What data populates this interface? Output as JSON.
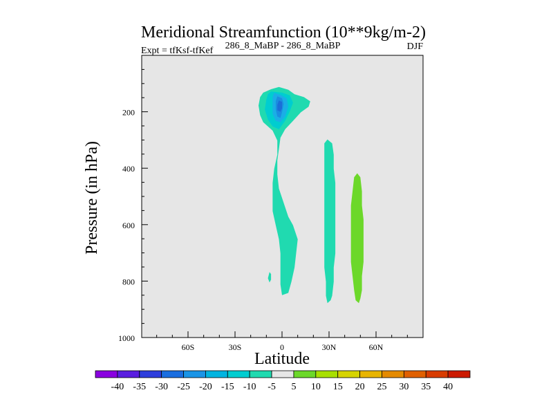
{
  "chart_data": {
    "type": "contour",
    "title": "Meridional Streamfunction (10**9kg/m-2)",
    "subtitle_left": "Expt = tfKsf-tfKef",
    "subtitle_center": "286_8_MaBP - 286_8_MaBP",
    "subtitle_right": "DJF",
    "xlabel": "Latitude",
    "ylabel": "Pressure (in hPa)",
    "xlim": [
      -90,
      90
    ],
    "ylim": [
      1000,
      0
    ],
    "x_ticks": [
      {
        "value": -60,
        "label": "60S"
      },
      {
        "value": -30,
        "label": "30S"
      },
      {
        "value": 0,
        "label": "0"
      },
      {
        "value": 30,
        "label": "30N"
      },
      {
        "value": 60,
        "label": "60N"
      }
    ],
    "y_ticks": [
      {
        "value": 200,
        "label": "200"
      },
      {
        "value": 400,
        "label": "400"
      },
      {
        "value": 600,
        "label": "600"
      },
      {
        "value": 800,
        "label": "800"
      },
      {
        "value": 1000,
        "label": "1000"
      }
    ],
    "background_color": "#e6e6e6",
    "colorbar": {
      "labels": [
        "-40",
        "-35",
        "-30",
        "-25",
        "-20",
        "-15",
        "-10",
        "-5",
        "5",
        "10",
        "15",
        "20",
        "25",
        "30",
        "35",
        "40"
      ],
      "colors": [
        "#8a00e0",
        "#5a1ee0",
        "#2e3edc",
        "#1a6ee0",
        "#1a94e6",
        "#00b4e0",
        "#00cdd0",
        "#20dab0",
        "#e6e6e6",
        "#6cd82a",
        "#a8e000",
        "#d6d400",
        "#e8b400",
        "#e48a00",
        "#e06000",
        "#d83c00",
        "#cc1a00"
      ]
    },
    "regions": [
      {
        "level": "-5 to -10",
        "color": "#20dab0",
        "polygon": [
          [
            -2,
            112
          ],
          [
            4,
            122
          ],
          [
            8,
            138
          ],
          [
            14,
            148
          ],
          [
            18,
            163
          ],
          [
            17,
            182
          ],
          [
            12,
            202
          ],
          [
            7,
            232
          ],
          [
            2,
            262
          ],
          [
            -1,
            292
          ],
          [
            -2,
            332
          ],
          [
            -3,
            372
          ],
          [
            -3,
            422
          ],
          [
            -2,
            472
          ],
          [
            1,
            522
          ],
          [
            4,
            572
          ],
          [
            7,
            602
          ],
          [
            10,
            652
          ],
          [
            9,
            702
          ],
          [
            8,
            752
          ],
          [
            6,
            802
          ],
          [
            4,
            842
          ],
          [
            0,
            850
          ],
          [
            -1,
            812
          ],
          [
            -1,
            752
          ],
          [
            -1,
            702
          ],
          [
            -2,
            652
          ],
          [
            -4,
            602
          ],
          [
            -6,
            552
          ],
          [
            -6,
            502
          ],
          [
            -6,
            452
          ],
          [
            -5,
            402
          ],
          [
            -3,
            352
          ],
          [
            -3,
            302
          ],
          [
            -6,
            267
          ],
          [
            -12,
            237
          ],
          [
            -14,
            212
          ],
          [
            -15,
            178
          ],
          [
            -14,
            148
          ],
          [
            -12,
            132
          ],
          [
            -7,
            120
          ]
        ]
      },
      {
        "level": "-10 to -15",
        "color": "#00cdd0",
        "polygon": [
          [
            -7,
            128
          ],
          [
            0,
            132
          ],
          [
            5,
            142
          ],
          [
            7,
            168
          ],
          [
            5,
            198
          ],
          [
            2,
            232
          ],
          [
            -2,
            262
          ],
          [
            -6,
            252
          ],
          [
            -9,
            228
          ],
          [
            -11,
            192
          ],
          [
            -10,
            157
          ],
          [
            -9,
            138
          ]
        ]
      },
      {
        "level": "-15 to -20",
        "color": "#1aaee6",
        "polygon": [
          [
            -5,
            133
          ],
          [
            -1,
            140
          ],
          [
            3,
            153
          ],
          [
            4,
            182
          ],
          [
            2,
            217
          ],
          [
            -1,
            237
          ],
          [
            -4,
            232
          ],
          [
            -6,
            207
          ],
          [
            -6,
            172
          ],
          [
            -6,
            148
          ]
        ]
      },
      {
        "level": "-20 to -25",
        "color": "#1a8ee0",
        "polygon": [
          [
            -3,
            145
          ],
          [
            0,
            152
          ],
          [
            1,
            172
          ],
          [
            0,
            202
          ],
          [
            -1,
            222
          ],
          [
            -3,
            217
          ],
          [
            -4,
            192
          ],
          [
            -4,
            162
          ]
        ]
      },
      {
        "level": "-25 to -30",
        "color": "#1a6ed8",
        "polygon": [
          [
            -2,
            160
          ],
          [
            0,
            165
          ],
          [
            0,
            188
          ],
          [
            -1,
            200
          ],
          [
            -3,
            195
          ],
          [
            -3,
            175
          ]
        ]
      },
      {
        "level": "-5 to -10",
        "color": "#20dab0",
        "polygon": [
          [
            -8,
            768
          ],
          [
            -7,
            775
          ],
          [
            -7,
            795
          ],
          [
            -8,
            805
          ],
          [
            -9,
            790
          ]
        ]
      },
      {
        "level": "-5 to -10",
        "color": "#20dab0",
        "polygon": [
          [
            29,
            298
          ],
          [
            32,
            312
          ],
          [
            33,
            352
          ],
          [
            33,
            402
          ],
          [
            34,
            452
          ],
          [
            34,
            502
          ],
          [
            34,
            552
          ],
          [
            34,
            602
          ],
          [
            34,
            652
          ],
          [
            34,
            702
          ],
          [
            33,
            752
          ],
          [
            33,
            802
          ],
          [
            32,
            852
          ],
          [
            31,
            868
          ],
          [
            29,
            878
          ],
          [
            28,
            852
          ],
          [
            28,
            802
          ],
          [
            27,
            752
          ],
          [
            27,
            702
          ],
          [
            27,
            652
          ],
          [
            27,
            602
          ],
          [
            27,
            552
          ],
          [
            27,
            502
          ],
          [
            27,
            452
          ],
          [
            27,
            402
          ],
          [
            27,
            352
          ],
          [
            27,
            312
          ]
        ]
      },
      {
        "level": "5 to 10",
        "color": "#6cd82a",
        "polygon": [
          [
            48,
            418
          ],
          [
            50,
            432
          ],
          [
            51,
            482
          ],
          [
            51,
            532
          ],
          [
            52,
            582
          ],
          [
            52,
            632
          ],
          [
            52,
            682
          ],
          [
            52,
            732
          ],
          [
            51,
            782
          ],
          [
            51,
            832
          ],
          [
            50,
            862
          ],
          [
            49,
            878
          ],
          [
            47,
            868
          ],
          [
            46,
            832
          ],
          [
            45,
            782
          ],
          [
            44,
            732
          ],
          [
            44,
            682
          ],
          [
            44,
            632
          ],
          [
            44,
            582
          ],
          [
            44,
            532
          ],
          [
            45,
            482
          ],
          [
            46,
            432
          ]
        ]
      }
    ]
  }
}
